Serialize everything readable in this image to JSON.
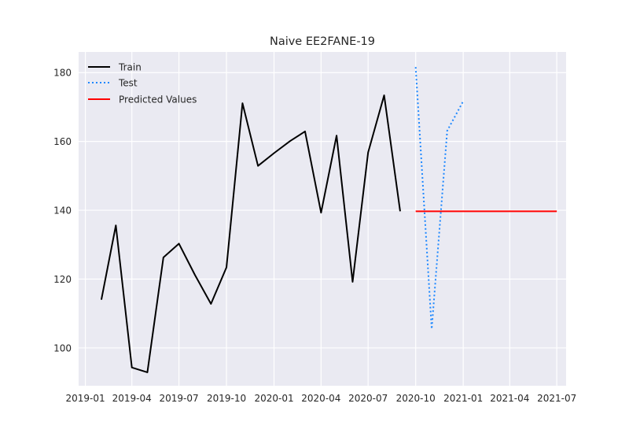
{
  "chart_data": {
    "type": "line",
    "title": "Naive EE2FANE-19",
    "xlabel": "",
    "ylabel": "",
    "ylim": [
      89,
      186
    ],
    "xlim": [
      "2018-12-19",
      "2021-07-19"
    ],
    "grid": true,
    "legend_position": "top-left",
    "x_ticks": [
      "2019-01",
      "2019-04",
      "2019-07",
      "2019-10",
      "2020-01",
      "2020-04",
      "2020-07",
      "2020-10",
      "2021-01",
      "2021-04",
      "2021-07"
    ],
    "y_ticks": [
      100,
      120,
      140,
      160,
      180
    ],
    "series": [
      {
        "name": "Train",
        "style": "solid",
        "color": "#000000",
        "x": [
          "2019-02-01",
          "2019-03-01",
          "2019-04-01",
          "2019-05-01",
          "2019-06-01",
          "2019-07-01",
          "2019-08-01",
          "2019-09-01",
          "2019-10-01",
          "2019-11-01",
          "2019-12-01",
          "2020-01-01",
          "2020-02-01",
          "2020-03-01",
          "2020-04-01",
          "2020-05-01",
          "2020-06-01",
          "2020-07-01",
          "2020-08-01",
          "2020-09-01"
        ],
        "values": [
          114,
          135.6,
          94.3,
          92.9,
          126.3,
          130.3,
          121.2,
          112.8,
          123.4,
          171.1,
          152.9,
          156.6,
          160.1,
          162.9,
          139.3,
          161.7,
          119.2,
          156.8,
          173.4,
          139.7
        ]
      },
      {
        "name": "Test",
        "style": "dotted",
        "color": "#1e88ff",
        "x": [
          "2020-10-01",
          "2020-11-01",
          "2020-12-01",
          "2021-01-01"
        ],
        "values": [
          181.6,
          105.5,
          163.1,
          171.7
        ]
      },
      {
        "name": "Predicted Values",
        "style": "solid",
        "color": "#ff0000",
        "x": [
          "2020-10-01",
          "2021-07-01"
        ],
        "values": [
          139.7,
          139.7
        ]
      }
    ]
  }
}
